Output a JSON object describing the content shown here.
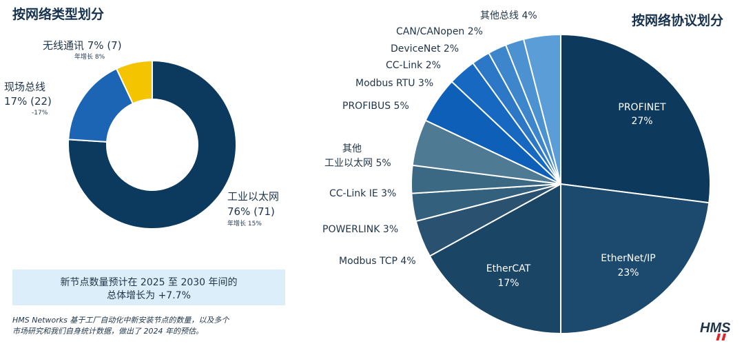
{
  "left_title": "按网络类型划分",
  "right_title": "按网络协议划分",
  "type_labels": {
    "wireless": {
      "line1": "无线通讯 7% (7)",
      "growth": "年增长 8%"
    },
    "fieldbus": {
      "line1": "现场总线",
      "line2": "17% (22)",
      "growth": "-17%"
    },
    "ethernet": {
      "line1": "工业以太网",
      "line2": "76% (71)",
      "growth": "年增长 15%"
    }
  },
  "protocol_labels": {
    "other_bus": "其他总线 4%",
    "canopen": "CAN/CANopen 2%",
    "devicenet": "DeviceNet 2%",
    "cclink": "CC-Link 2%",
    "modbus_rtu": "Modbus RTU 3%",
    "profibus": "PROFIBUS 5%",
    "other_eth_1": "其他",
    "other_eth_2": "工业以太网 5%",
    "cclink_ie": "CC-Link IE 3%",
    "powerlink": "POWERLINK 3%",
    "modbus_tcp": "Modbus TCP 4%",
    "profinet_name": "PROFINET",
    "profinet_pct": "27%",
    "ethernetip_name": "EtherNet/IP",
    "ethernetip_pct": "23%",
    "ethercat_name": "EtherCAT",
    "ethercat_pct": "17%"
  },
  "growth_box": {
    "line1": "新节点数量预计在 2025 至 2030 年间的",
    "line2": "总体增长为 +7.7%"
  },
  "footnote": {
    "line1": "HMS Networks 基于工厂自动化中新安装节点的数量，以及多个",
    "line2": "市场研究和我们自身统计数据，做出了 2024 年的预估。"
  },
  "logo": "HMS",
  "chart_data": [
    {
      "type": "pie",
      "title": "按网络类型划分",
      "donut": true,
      "categories": [
        "工业以太网",
        "现场总线",
        "无线通讯"
      ],
      "values": [
        76,
        17,
        7
      ],
      "counts": [
        71,
        22,
        7
      ],
      "annual_growth": [
        "15%",
        "-17%",
        "8%"
      ],
      "colors": [
        "#0c3a5e",
        "#1c64b4",
        "#f5c400"
      ]
    },
    {
      "type": "pie",
      "title": "按网络协议划分",
      "donut": false,
      "categories": [
        "PROFINET",
        "EtherNet/IP",
        "EtherCAT",
        "Modbus TCP",
        "POWERLINK",
        "CC-Link IE",
        "其他工业以太网",
        "PROFIBUS",
        "Modbus RTU",
        "CC-Link",
        "DeviceNet",
        "CAN/CANopen",
        "其他总线"
      ],
      "values": [
        27,
        23,
        17,
        4,
        3,
        3,
        5,
        5,
        3,
        2,
        2,
        2,
        4
      ],
      "colors": [
        "#0d3a5c",
        "#1c4a6e",
        "#1a4564",
        "#2a5270",
        "#33607c",
        "#3b6984",
        "#4f7a93",
        "#0d5fb8",
        "#1768c0",
        "#2c78c6",
        "#3d86cc",
        "#4d92d0",
        "#5b9dd6"
      ]
    }
  ]
}
